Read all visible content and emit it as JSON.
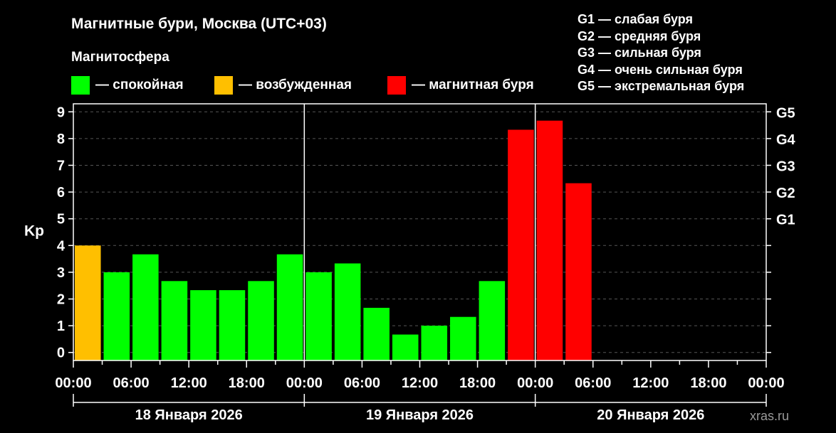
{
  "header": {
    "title": "Магнитные бури, Москва (UTC+03)",
    "subtitle": "Магнитосфера"
  },
  "legend": {
    "quiet": {
      "label": "— спокойная",
      "color": "#00ff00"
    },
    "disturbed": {
      "label": "— возбужденная",
      "color": "#ffbf00"
    },
    "storm": {
      "label": "— магнитная буря",
      "color": "#ff0000"
    }
  },
  "g_legend": [
    "G1 — слабая буря",
    "G2 — средняя буря",
    "G3 — сильная буря",
    "G4 — очень сильная буря",
    "G5 — экстремальная буря"
  ],
  "watermark": "xras.ru",
  "chart_data": {
    "type": "bar",
    "ylabel": "Kp",
    "ylim": [
      -0.3,
      9.3
    ],
    "y_ticks": [
      "0",
      "1",
      "2",
      "3",
      "4",
      "5",
      "6",
      "7",
      "8",
      "9"
    ],
    "g_levels": [
      {
        "label": "G1",
        "kp": 5
      },
      {
        "label": "G2",
        "kp": 6
      },
      {
        "label": "G3",
        "kp": 7
      },
      {
        "label": "G4",
        "kp": 8
      },
      {
        "label": "G5",
        "kp": 9
      }
    ],
    "x_tick_labels": [
      "00:00",
      "06:00",
      "12:00",
      "18:00",
      "00:00",
      "06:00",
      "12:00",
      "18:00",
      "00:00",
      "06:00",
      "12:00",
      "18:00",
      "00:00"
    ],
    "x_range_hours": [
      0,
      72
    ],
    "hours_per_bar": 3,
    "days": [
      "18 Января 2026",
      "19 Января 2026",
      "20 Января 2026"
    ],
    "values": [
      4.0,
      3.0,
      3.67,
      2.67,
      2.33,
      2.33,
      2.67,
      3.67,
      3.0,
      3.33,
      1.67,
      0.67,
      1.0,
      1.33,
      2.67,
      8.33,
      8.67,
      6.33
    ],
    "bar_colors": [
      "#ffbf00",
      "#00ff00",
      "#00ff00",
      "#00ff00",
      "#00ff00",
      "#00ff00",
      "#00ff00",
      "#00ff00",
      "#00ff00",
      "#00ff00",
      "#00ff00",
      "#00ff00",
      "#00ff00",
      "#00ff00",
      "#00ff00",
      "#ff0000",
      "#ff0000",
      "#ff0000"
    ],
    "grid": true,
    "grid_color": "#555555",
    "axis_color": "#ffffff"
  }
}
